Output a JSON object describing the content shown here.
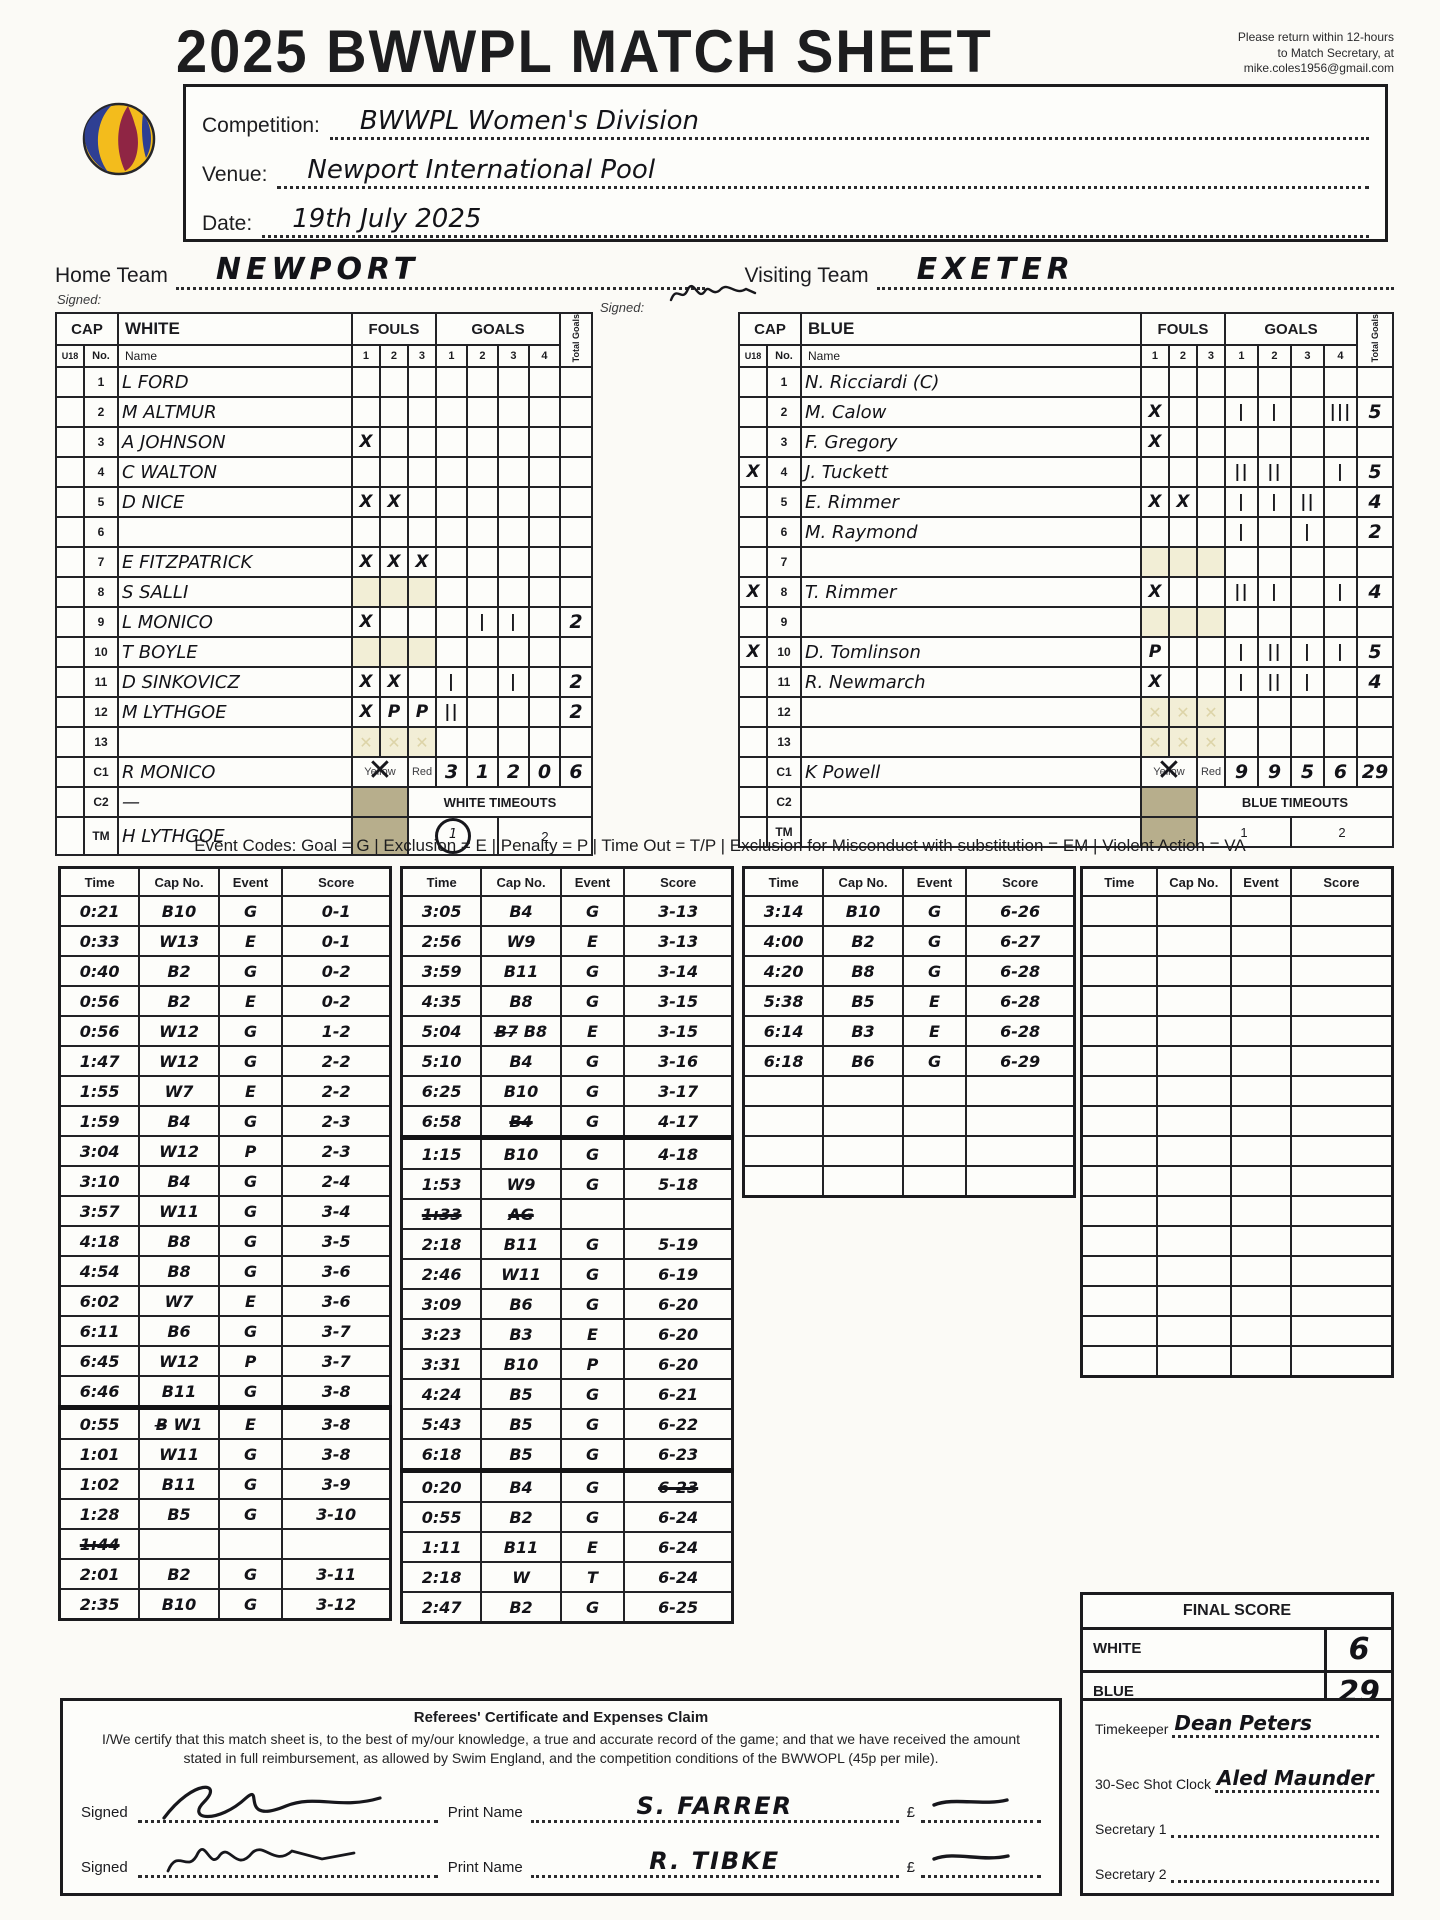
{
  "colors": {
    "ink": "#17171c",
    "paper": "#fbfaf6",
    "shade_pale": "#f2eed6",
    "shade_khaki": "#b7ae8c",
    "ball_blue": "#2e3f93",
    "ball_yellow": "#f3bc1c",
    "ball_red": "#8f2544"
  },
  "header": {
    "title": "2025 BWWPL MATCH SHEET",
    "return_note": [
      "Please return within 12-hours",
      "to Match Secretary, at",
      "mike.coles1956@gmail.com"
    ],
    "fields": {
      "competition_label": "Competition:",
      "competition_value": "BWWPL Women's Division",
      "venue_label": "Venue:",
      "venue_value": "Newport International Pool",
      "date_label": "Date:",
      "date_value": "19th July 2025"
    }
  },
  "teams_line": {
    "home_label": "Home Team",
    "home_value": "NEWPORT",
    "home_signed_label": "Signed:",
    "visiting_label": "Visiting Team",
    "visiting_value": "EXETER",
    "visiting_signed_label": "Signed:"
  },
  "roster_header": {
    "cap": "CAP",
    "u18": "U18",
    "no": "No.",
    "name": "Name",
    "fouls": "FOULS",
    "goals": "GOALS",
    "total_goals": "Total Goals",
    "foul_cols": [
      "1",
      "2",
      "3"
    ],
    "goal_cols": [
      "1",
      "2",
      "3",
      "4"
    ],
    "yellow": "Yellow",
    "red": "Red"
  },
  "white_team": {
    "label": "WHITE",
    "timeouts_label": "WHITE TIMEOUTS",
    "timeout_labels": [
      "1",
      "2"
    ],
    "timeout1_circled": true,
    "players": [
      {
        "no": "1",
        "name": "L FORD"
      },
      {
        "no": "2",
        "name": "M ALTMUR"
      },
      {
        "no": "3",
        "name": "A JOHNSON",
        "f": [
          "X",
          "",
          ""
        ]
      },
      {
        "no": "4",
        "name": "C WALTON"
      },
      {
        "no": "5",
        "name": "D NICE",
        "f": [
          "X",
          "X",
          ""
        ]
      },
      {
        "no": "6",
        "name": ""
      },
      {
        "no": "7",
        "name": "E FITZPATRICK",
        "f": [
          "X",
          "X",
          "X"
        ]
      },
      {
        "no": "8",
        "name": "S SALLI",
        "shade": true
      },
      {
        "no": "9",
        "name": "L MONICO",
        "f": [
          "X",
          "",
          ""
        ],
        "g": [
          "",
          "|",
          "|",
          ""
        ],
        "t": "2"
      },
      {
        "no": "10",
        "name": "T BOYLE",
        "shade": true
      },
      {
        "no": "11",
        "name": "D SINKOVICZ",
        "f": [
          "X",
          "X",
          ""
        ],
        "g": [
          "|",
          "",
          "|",
          ""
        ],
        "t": "2"
      },
      {
        "no": "12",
        "name": "M LYTHGOE",
        "f": [
          "X",
          "P",
          "P"
        ],
        "g": [
          "||",
          "",
          "",
          ""
        ],
        "t": "2"
      },
      {
        "no": "13",
        "name": "",
        "shade": true,
        "ghost": true
      }
    ],
    "c1": {
      "row": "C1",
      "name": "R MONICO",
      "yellow_mark": "X",
      "quarters": [
        "3",
        "1",
        "2",
        "0"
      ],
      "total": "6"
    },
    "c2": {
      "row": "C2",
      "name": "—"
    },
    "tm": {
      "row": "TM",
      "name": "H LYTHGOE"
    }
  },
  "blue_team": {
    "label": "BLUE",
    "timeouts_label": "BLUE TIMEOUTS",
    "timeout_labels": [
      "1",
      "2"
    ],
    "timeout1_circled": false,
    "players": [
      {
        "no": "1",
        "name": "N. Ricciardi (C)"
      },
      {
        "no": "2",
        "name": "M. Calow",
        "f": [
          "X",
          "",
          ""
        ],
        "g": [
          "|",
          "|",
          "",
          "|||"
        ],
        "t": "5"
      },
      {
        "no": "3",
        "name": "F. Gregory",
        "f": [
          "X",
          "",
          ""
        ]
      },
      {
        "no": "4",
        "u18": "X",
        "name": "J. Tuckett",
        "g": [
          "||",
          "||",
          "",
          "|"
        ],
        "t": "5"
      },
      {
        "no": "5",
        "name": "E. Rimmer",
        "f": [
          "X",
          "X",
          ""
        ],
        "g": [
          "|",
          "|",
          "||",
          ""
        ],
        "t": "4"
      },
      {
        "no": "6",
        "name": "M. Raymond",
        "g": [
          "|",
          "",
          "|",
          ""
        ],
        "t": "2"
      },
      {
        "no": "7",
        "name": "",
        "shade": true
      },
      {
        "no": "8",
        "u18": "X",
        "name": "T. Rimmer",
        "f": [
          "X",
          "",
          ""
        ],
        "g": [
          "||",
          "|",
          "",
          "|"
        ],
        "t": "4"
      },
      {
        "no": "9",
        "name": "",
        "shade": true
      },
      {
        "no": "10",
        "u18": "X",
        "name": "D. Tomlinson",
        "f": [
          "P",
          "",
          ""
        ],
        "g": [
          "|",
          "||",
          "|",
          "|"
        ],
        "t": "5"
      },
      {
        "no": "11",
        "name": "R. Newmarch",
        "f": [
          "X",
          "",
          ""
        ],
        "g": [
          "|",
          "||",
          "|",
          ""
        ],
        "t": "4"
      },
      {
        "no": "12",
        "name": "",
        "shade": true,
        "ghost": true
      },
      {
        "no": "13",
        "name": "",
        "shade": true,
        "ghost": true
      }
    ],
    "c1": {
      "row": "C1",
      "name": "K Powell",
      "yellow_mark": "X",
      "quarters": [
        "9",
        "9",
        "5",
        "6"
      ],
      "total": "29"
    },
    "c2": {
      "row": "C2",
      "name": ""
    },
    "tm": {
      "row": "TM",
      "name": ""
    }
  },
  "event_codes": "Event Codes: Goal = G | Exclusion = E | Penalty = P | Time Out = T/P | Exclusion for Misconduct with substitution = EM | Violent Action = VA",
  "event_log": {
    "columns": [
      "Time",
      "Cap No.",
      "Event",
      "Score"
    ],
    "tables": [
      {
        "rows": [
          {
            "t": "0:21",
            "c": "B10",
            "e": "G",
            "s": "0-1"
          },
          {
            "t": "0:33",
            "c": "W13",
            "e": "E",
            "s": "0-1"
          },
          {
            "t": "0:40",
            "c": "B2",
            "e": "G",
            "s": "0-2"
          },
          {
            "t": "0:56",
            "c": "B2",
            "e": "E",
            "s": "0-2"
          },
          {
            "t": "0:56",
            "c": "W12",
            "e": "G",
            "s": "1-2"
          },
          {
            "t": "1:47",
            "c": "W12",
            "e": "G",
            "s": "2-2"
          },
          {
            "t": "1:55",
            "c": "W7",
            "e": "E",
            "s": "2-2"
          },
          {
            "t": "1:59",
            "c": "B4",
            "e": "G",
            "s": "2-3"
          },
          {
            "t": "3:04",
            "c": "W12",
            "e": "P",
            "s": "2-3"
          },
          {
            "t": "3:10",
            "c": "B4",
            "e": "G",
            "s": "2-4"
          },
          {
            "t": "3:57",
            "c": "W11",
            "e": "G",
            "s": "3-4"
          },
          {
            "t": "4:18",
            "c": "B8",
            "e": "G",
            "s": "3-5"
          },
          {
            "t": "4:54",
            "c": "B8",
            "e": "G",
            "s": "3-6"
          },
          {
            "t": "6:02",
            "c": "W7",
            "e": "E",
            "s": "3-6"
          },
          {
            "t": "6:11",
            "c": "B6",
            "e": "G",
            "s": "3-7"
          },
          {
            "t": "6:45",
            "c": "W12",
            "e": "P",
            "s": "3-7"
          },
          {
            "t": "6:46",
            "c": "B11",
            "e": "G",
            "s": "3-8",
            "line_after": true
          },
          {
            "t": "0:55",
            "c": "B̶ W1",
            "e": "E",
            "s": "3-8"
          },
          {
            "t": "1:01",
            "c": "W11",
            "e": "G",
            "s": "3-8"
          },
          {
            "t": "1:02",
            "c": "B11",
            "e": "G",
            "s": "3-9"
          },
          {
            "t": "1:28",
            "c": "B5",
            "e": "G",
            "s": "3-10"
          },
          {
            "t": "1:44",
            "c": "",
            "e": "",
            "s": "",
            "struck": true
          },
          {
            "t": "2:01",
            "c": "B2",
            "e": "G",
            "s": "3-11"
          },
          {
            "t": "2:35",
            "c": "B10",
            "e": "G",
            "s": "3-12"
          }
        ],
        "empty_rows": 0
      },
      {
        "rows": [
          {
            "t": "3:05",
            "c": "B4",
            "e": "G",
            "s": "3-13"
          },
          {
            "t": "2:56",
            "c": "W9",
            "e": "E",
            "s": "3-13"
          },
          {
            "t": "3:59",
            "c": "B11",
            "e": "G",
            "s": "3-14"
          },
          {
            "t": "4:35",
            "c": "B8",
            "e": "G",
            "s": "3-15"
          },
          {
            "t": "5:04",
            "c": "B̶7̶ B8",
            "e": "E",
            "s": "3-15"
          },
          {
            "t": "5:10",
            "c": "B4",
            "e": "G",
            "s": "3-16"
          },
          {
            "t": "6:25",
            "c": "B10",
            "e": "G",
            "s": "3-17"
          },
          {
            "t": "6:58",
            "c": "B4",
            "e": "G",
            "s": "4-17",
            "cap_struck": true,
            "line_after": true
          },
          {
            "t": "1:15",
            "c": "B10",
            "e": "G",
            "s": "4-18"
          },
          {
            "t": "1:53",
            "c": "W9",
            "e": "G",
            "s": "5-18"
          },
          {
            "t": "1:33",
            "c": "AG",
            "e": "",
            "s": "",
            "struck": true
          },
          {
            "t": "2:18",
            "c": "B11",
            "e": "G",
            "s": "5-19"
          },
          {
            "t": "2:46",
            "c": "W11",
            "e": "G",
            "s": "6-19"
          },
          {
            "t": "3:09",
            "c": "B6",
            "e": "G",
            "s": "6-20"
          },
          {
            "t": "3:23",
            "c": "B3",
            "e": "E",
            "s": "6-20"
          },
          {
            "t": "3:31",
            "c": "B10",
            "e": "P",
            "s": "6-20"
          },
          {
            "t": "4:24",
            "c": "B5",
            "e": "G",
            "s": "6-21"
          },
          {
            "t": "5:43",
            "c": "B5",
            "e": "G",
            "s": "6-22"
          },
          {
            "t": "6:18",
            "c": "B5",
            "e": "G",
            "s": "6-23",
            "line_after": true
          },
          {
            "t": "0:20",
            "c": "B4",
            "e": "G",
            "s": "6-23",
            "score_struck": true
          },
          {
            "t": "0:55",
            "c": "B2",
            "e": "G",
            "s": "6-24"
          },
          {
            "t": "1:11",
            "c": "B11",
            "e": "E",
            "s": "6-24"
          },
          {
            "t": "2:18",
            "c": "W",
            "e": "T",
            "s": "6-24"
          },
          {
            "t": "2:47",
            "c": "B2",
            "e": "G",
            "s": "6-25"
          }
        ],
        "empty_rows": 0
      },
      {
        "rows": [
          {
            "t": "3:14",
            "c": "B10",
            "e": "G",
            "s": "6-26"
          },
          {
            "t": "4:00",
            "c": "B2",
            "e": "G",
            "s": "6-27"
          },
          {
            "t": "4:20",
            "c": "B8",
            "e": "G",
            "s": "6-28"
          },
          {
            "t": "5:38",
            "c": "B5",
            "e": "E",
            "s": "6-28"
          },
          {
            "t": "6:14",
            "c": "B3",
            "e": "E",
            "s": "6-28"
          },
          {
            "t": "6:18",
            "c": "B6",
            "e": "G",
            "s": "6-29"
          }
        ],
        "empty_rows": 4
      },
      {
        "rows": [],
        "empty_rows": 16
      }
    ]
  },
  "final_score": {
    "title": "FINAL SCORE",
    "white_label": "WHITE",
    "white_value": "6",
    "blue_label": "BLUE",
    "blue_value": "29"
  },
  "certificate": {
    "title": "Referees' Certificate and Expenses Claim",
    "body": "I/We certify that this match sheet is, to the best of my/our knowledge, a true and accurate record of the game; and that we have received the amount stated in full reimbursement, as allowed by Swim England, and the competition conditions of the BWWOPL (45p per mile).",
    "signed_label": "Signed",
    "print_name_label": "Print Name",
    "pound_label": "£",
    "referee1_print_name": "S. FARRER",
    "referee2_print_name": "R. TIBKE"
  },
  "officials": {
    "timekeeper_label": "Timekeeper",
    "timekeeper_value": "Dean Peters",
    "shot_clock_label": "30-Sec Shot Clock",
    "shot_clock_value": "Aled Maunder",
    "secretary1_label": "Secretary 1",
    "secretary2_label": "Secretary 2"
  }
}
